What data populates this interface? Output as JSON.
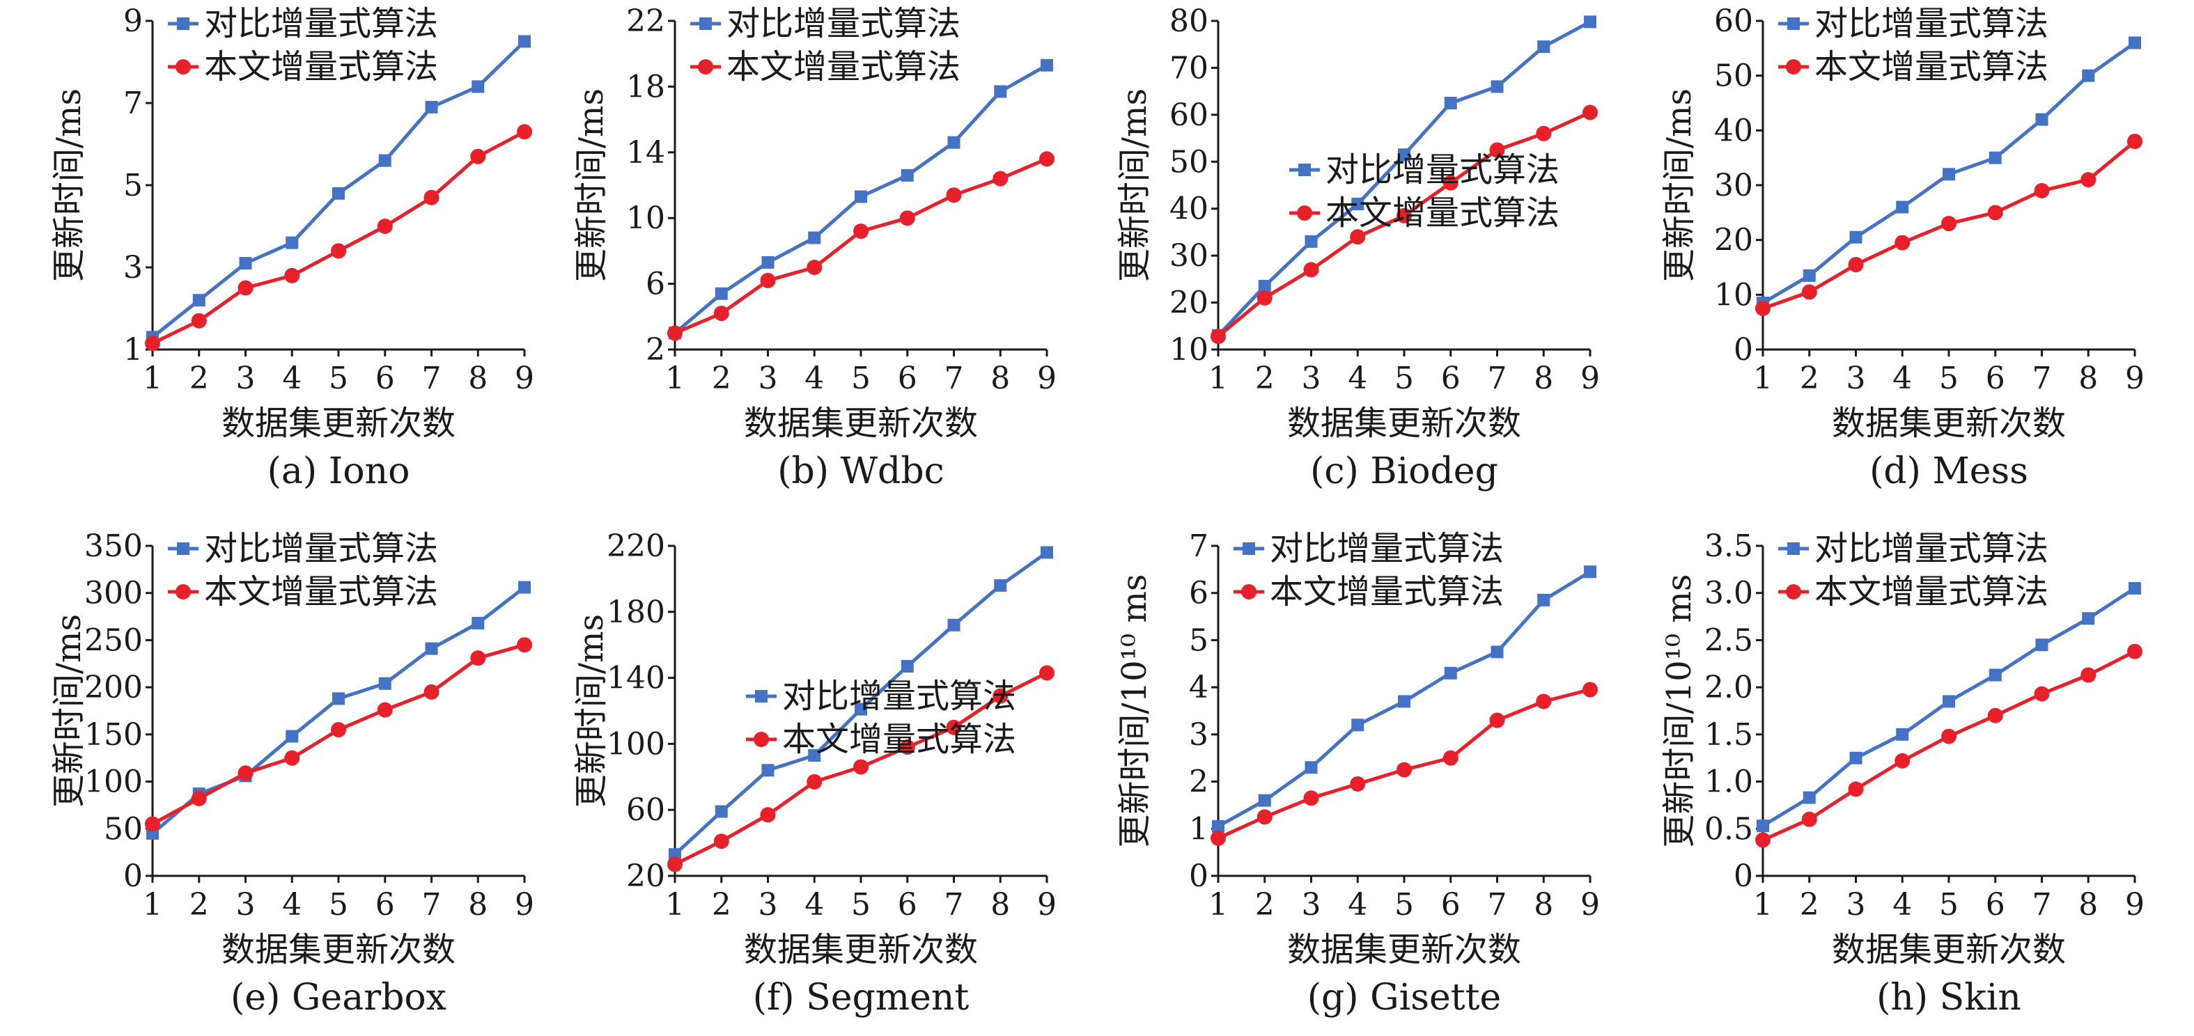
{
  "colors": {
    "blue": "#4472C4",
    "red": "#E8202A"
  },
  "chart_data": [
    {
      "type": "line",
      "caption": "(a) Iono",
      "xlabel": "数据集更新次数",
      "ylabel": "更新时间/ms",
      "x": [
        1,
        2,
        3,
        4,
        5,
        6,
        7,
        8,
        9
      ],
      "ylim": [
        1,
        9
      ],
      "yticks": [
        1,
        3,
        5,
        7,
        9
      ],
      "ytick_labels": [
        "1",
        "3",
        "5",
        "7",
        "9"
      ],
      "legend_position": "top-left",
      "series": [
        {
          "name": "对比增量式算法",
          "color": "#4472C4",
          "marker": "square",
          "values": [
            1.3,
            2.2,
            3.1,
            3.6,
            4.8,
            5.6,
            6.9,
            7.4,
            8.5
          ]
        },
        {
          "name": "本文增量式算法",
          "color": "#E8202A",
          "marker": "circle",
          "values": [
            1.15,
            1.7,
            2.5,
            2.8,
            3.4,
            4.0,
            4.7,
            5.7,
            6.3
          ]
        }
      ]
    },
    {
      "type": "line",
      "caption": "(b) Wdbc",
      "xlabel": "数据集更新次数",
      "ylabel": "更新时间/ms",
      "x": [
        1,
        2,
        3,
        4,
        5,
        6,
        7,
        8,
        9
      ],
      "ylim": [
        2,
        22
      ],
      "yticks": [
        2,
        6,
        10,
        14,
        18,
        22
      ],
      "ytick_labels": [
        "2",
        "6",
        "10",
        "14",
        "18",
        "22"
      ],
      "legend_position": "top-left",
      "series": [
        {
          "name": "对比增量式算法",
          "color": "#4472C4",
          "marker": "square",
          "values": [
            3.0,
            5.4,
            7.3,
            8.8,
            11.3,
            12.6,
            14.6,
            17.7,
            19.3
          ]
        },
        {
          "name": "本文增量式算法",
          "color": "#E8202A",
          "marker": "circle",
          "values": [
            3.0,
            4.2,
            6.2,
            7.0,
            9.2,
            10.0,
            11.4,
            12.4,
            13.6
          ]
        }
      ]
    },
    {
      "type": "line",
      "caption": "(c) Biodeg",
      "xlabel": "数据集更新次数",
      "ylabel": "更新时间/ms",
      "x": [
        1,
        2,
        3,
        4,
        5,
        6,
        7,
        8,
        9
      ],
      "ylim": [
        10,
        80
      ],
      "yticks": [
        10,
        20,
        30,
        40,
        50,
        60,
        70,
        80
      ],
      "ytick_labels": [
        "10",
        "20",
        "30",
        "40",
        "50",
        "60",
        "70",
        "80"
      ],
      "legend_position": "lower-right",
      "series": [
        {
          "name": "对比增量式算法",
          "color": "#4472C4",
          "marker": "square",
          "values": [
            13.0,
            23.5,
            33.0,
            41.0,
            51.5,
            62.5,
            66.0,
            74.5,
            79.8
          ]
        },
        {
          "name": "本文增量式算法",
          "color": "#E8202A",
          "marker": "circle",
          "values": [
            12.8,
            21.0,
            27.0,
            34.0,
            38.5,
            45.5,
            52.5,
            56.0,
            60.5
          ]
        }
      ]
    },
    {
      "type": "line",
      "caption": "(d) Mess",
      "xlabel": "数据集更新次数",
      "ylabel": "更新时间/ms",
      "x": [
        1,
        2,
        3,
        4,
        5,
        6,
        7,
        8,
        9
      ],
      "ylim": [
        0,
        60
      ],
      "yticks": [
        0,
        10,
        20,
        30,
        40,
        50,
        60
      ],
      "ytick_labels": [
        "0",
        "10",
        "20",
        "30",
        "40",
        "50",
        "60"
      ],
      "legend_position": "top-left",
      "series": [
        {
          "name": "对比增量式算法",
          "color": "#4472C4",
          "marker": "square",
          "values": [
            8.5,
            13.5,
            20.5,
            26.0,
            32.0,
            35.0,
            42.0,
            50.0,
            56.0
          ]
        },
        {
          "name": "本文增量式算法",
          "color": "#E8202A",
          "marker": "circle",
          "values": [
            7.5,
            10.5,
            15.5,
            19.5,
            23.0,
            25.0,
            29.0,
            31.0,
            38.0
          ]
        }
      ]
    },
    {
      "type": "line",
      "caption": "(e) Gearbox",
      "xlabel": "数据集更新次数",
      "ylabel": "更新时间/ms",
      "x": [
        1,
        2,
        3,
        4,
        5,
        6,
        7,
        8,
        9
      ],
      "ylim": [
        0,
        350
      ],
      "yticks": [
        0,
        50,
        100,
        150,
        200,
        250,
        300,
        350
      ],
      "ytick_labels": [
        "0",
        "50",
        "100",
        "150",
        "200",
        "250",
        "300",
        "350"
      ],
      "legend_position": "top-left",
      "series": [
        {
          "name": "对比增量式算法",
          "color": "#4472C4",
          "marker": "square",
          "values": [
            45,
            87,
            106,
            148,
            188,
            204,
            241,
            268,
            306
          ]
        },
        {
          "name": "本文增量式算法",
          "color": "#E8202A",
          "marker": "circle",
          "values": [
            55,
            82,
            109,
            125,
            155,
            176,
            195,
            231,
            245
          ]
        }
      ]
    },
    {
      "type": "line",
      "caption": "(f) Segment",
      "xlabel": "数据集更新次数",
      "ylabel": "更新时间/ms",
      "x": [
        1,
        2,
        3,
        4,
        5,
        6,
        7,
        8,
        9
      ],
      "ylim": [
        20,
        220
      ],
      "yticks": [
        20,
        60,
        100,
        140,
        180,
        220
      ],
      "ytick_labels": [
        "20",
        "60",
        "100",
        "140",
        "180",
        "220"
      ],
      "legend_position": "lower-right",
      "series": [
        {
          "name": "对比增量式算法",
          "color": "#4472C4",
          "marker": "square",
          "values": [
            33,
            59,
            84,
            93,
            121,
            147,
            172,
            196,
            216
          ]
        },
        {
          "name": "本文增量式算法",
          "color": "#E8202A",
          "marker": "circle",
          "values": [
            27,
            41,
            57,
            77,
            86,
            98,
            110,
            129,
            143
          ]
        }
      ]
    },
    {
      "type": "line",
      "caption": "(g) Gisette",
      "xlabel": "数据集更新次数",
      "ylabel": "更新时间/10¹⁰ ms",
      "x": [
        1,
        2,
        3,
        4,
        5,
        6,
        7,
        8,
        9
      ],
      "ylim": [
        0,
        7
      ],
      "yticks": [
        0,
        1,
        2,
        3,
        4,
        5,
        6,
        7
      ],
      "ytick_labels": [
        "0",
        "1",
        "2",
        "3",
        "4",
        "5",
        "6",
        "7"
      ],
      "legend_position": "top-left",
      "series": [
        {
          "name": "对比增量式算法",
          "color": "#4472C4",
          "marker": "square",
          "values": [
            1.05,
            1.6,
            2.3,
            3.2,
            3.7,
            4.3,
            4.75,
            5.85,
            6.45
          ]
        },
        {
          "name": "本文增量式算法",
          "color": "#E8202A",
          "marker": "circle",
          "values": [
            0.8,
            1.25,
            1.65,
            1.95,
            2.25,
            2.5,
            3.3,
            3.7,
            3.95
          ]
        }
      ]
    },
    {
      "type": "line",
      "caption": "(h) Skin",
      "xlabel": "数据集更新次数",
      "ylabel": "更新时间/10¹⁰ ms",
      "x": [
        1,
        2,
        3,
        4,
        5,
        6,
        7,
        8,
        9
      ],
      "ylim": [
        0,
        3.5
      ],
      "yticks": [
        0,
        0.5,
        1.0,
        1.5,
        2.0,
        2.5,
        3.0,
        3.5
      ],
      "ytick_labels": [
        "0",
        "0.5",
        "1.0",
        "1.5",
        "2.0",
        "2.5",
        "3.0",
        "3.5"
      ],
      "legend_position": "top-left",
      "series": [
        {
          "name": "对比增量式算法",
          "color": "#4472C4",
          "marker": "square",
          "values": [
            0.53,
            0.83,
            1.25,
            1.5,
            1.85,
            2.13,
            2.45,
            2.73,
            3.05
          ]
        },
        {
          "name": "本文增量式算法",
          "color": "#E8202A",
          "marker": "circle",
          "values": [
            0.38,
            0.6,
            0.92,
            1.22,
            1.48,
            1.7,
            1.93,
            2.13,
            2.38
          ]
        }
      ]
    }
  ]
}
